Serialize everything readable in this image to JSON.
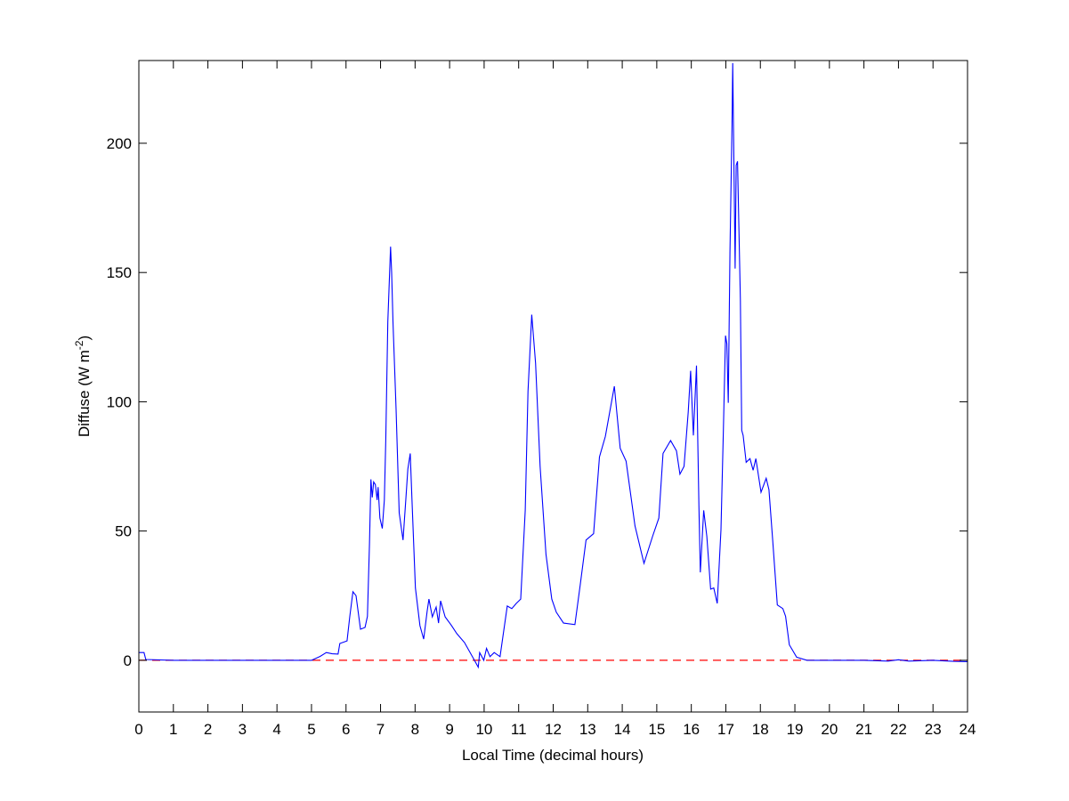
{
  "chart_data": {
    "type": "line",
    "title": "",
    "xlabel": "Local Time (decimal hours)",
    "ylabel_main": "Diffuse (W m",
    "ylabel_sup": "-2",
    "ylabel_end": ")",
    "xlim": [
      0,
      24
    ],
    "ylim": [
      -20,
      232
    ],
    "xticks": [
      0,
      1,
      2,
      3,
      4,
      5,
      6,
      7,
      8,
      9,
      10,
      11,
      12,
      13,
      14,
      15,
      16,
      17,
      18,
      19,
      20,
      21,
      22,
      23,
      24
    ],
    "yticks": [
      0,
      50,
      100,
      150,
      200
    ],
    "grid": false,
    "legend": null,
    "colors": {
      "series": "#0000ff",
      "reference": "#ff0000",
      "axes": "#000000"
    },
    "reference_line": {
      "y": 0,
      "style": "dashed"
    },
    "series": [
      {
        "points": [
          [
            0,
            3
          ],
          [
            0.15,
            3
          ],
          [
            0.2,
            0.3
          ],
          [
            1,
            0
          ],
          [
            2,
            0
          ],
          [
            3,
            0
          ],
          [
            4,
            0
          ],
          [
            5.0,
            0
          ],
          [
            5.08,
            0.5
          ],
          [
            5.25,
            1.5
          ],
          [
            5.43,
            3
          ],
          [
            5.6,
            2.5
          ],
          [
            5.77,
            2.4
          ],
          [
            5.82,
            6.5
          ],
          [
            6.03,
            7.5
          ],
          [
            6.11,
            17
          ],
          [
            6.2,
            26.5
          ],
          [
            6.29,
            25
          ],
          [
            6.42,
            12
          ],
          [
            6.55,
            12.7
          ],
          [
            6.62,
            17
          ],
          [
            6.68,
            45
          ],
          [
            6.72,
            70
          ],
          [
            6.76,
            63
          ],
          [
            6.8,
            69
          ],
          [
            6.85,
            68
          ],
          [
            6.9,
            62
          ],
          [
            6.93,
            67
          ],
          [
            6.98,
            55
          ],
          [
            7.05,
            51
          ],
          [
            7.11,
            62
          ],
          [
            7.15,
            85
          ],
          [
            7.21,
            131
          ],
          [
            7.29,
            160
          ],
          [
            7.32,
            150
          ],
          [
            7.36,
            131
          ],
          [
            7.45,
            97
          ],
          [
            7.54,
            57
          ],
          [
            7.65,
            46.5
          ],
          [
            7.73,
            62
          ],
          [
            7.79,
            74
          ],
          [
            7.86,
            80
          ],
          [
            7.91,
            62.5
          ],
          [
            8.01,
            28
          ],
          [
            8.14,
            13.4
          ],
          [
            8.25,
            8.2
          ],
          [
            8.35,
            19
          ],
          [
            8.4,
            23.7
          ],
          [
            8.5,
            16.8
          ],
          [
            8.61,
            20.6
          ],
          [
            8.68,
            14.4
          ],
          [
            8.74,
            23
          ],
          [
            8.87,
            16.8
          ],
          [
            9.04,
            13.7
          ],
          [
            9.21,
            10.3
          ],
          [
            9.43,
            6.9
          ],
          [
            9.69,
            0.7
          ],
          [
            9.83,
            -2.7
          ],
          [
            9.87,
            3
          ],
          [
            9.99,
            0
          ],
          [
            10.07,
            4.6
          ],
          [
            10.17,
            1.4
          ],
          [
            10.29,
            3
          ],
          [
            10.46,
            1.4
          ],
          [
            10.67,
            21
          ],
          [
            10.8,
            20
          ],
          [
            10.93,
            22
          ],
          [
            11.06,
            23.7
          ],
          [
            11.19,
            58
          ],
          [
            11.27,
            104
          ],
          [
            11.38,
            133.7
          ],
          [
            11.49,
            115
          ],
          [
            11.62,
            75
          ],
          [
            11.79,
            41
          ],
          [
            11.96,
            23.7
          ],
          [
            12.09,
            18.6
          ],
          [
            12.3,
            14.4
          ],
          [
            12.63,
            13.8
          ],
          [
            12.78,
            29
          ],
          [
            12.95,
            46.5
          ],
          [
            13.17,
            49
          ],
          [
            13.34,
            78.7
          ],
          [
            13.51,
            86.6
          ],
          [
            13.77,
            106
          ],
          [
            13.94,
            82
          ],
          [
            14.11,
            77
          ],
          [
            14.37,
            52
          ],
          [
            14.63,
            37.5
          ],
          [
            14.88,
            48
          ],
          [
            15.06,
            55
          ],
          [
            15.18,
            80
          ],
          [
            15.4,
            85
          ],
          [
            15.57,
            81
          ],
          [
            15.67,
            72
          ],
          [
            15.79,
            75
          ],
          [
            15.91,
            96
          ],
          [
            15.98,
            112
          ],
          [
            16.06,
            87
          ],
          [
            16.15,
            114
          ],
          [
            16.22,
            60
          ],
          [
            16.26,
            34
          ],
          [
            16.36,
            58
          ],
          [
            16.45,
            48
          ],
          [
            16.56,
            27.5
          ],
          [
            16.65,
            28
          ],
          [
            16.75,
            22
          ],
          [
            16.86,
            50.5
          ],
          [
            16.93,
            89
          ],
          [
            16.99,
            125.6
          ],
          [
            17.03,
            122.5
          ],
          [
            17.07,
            99.6
          ],
          [
            17.12,
            158
          ],
          [
            17.18,
            207
          ],
          [
            17.2,
            231
          ],
          [
            17.25,
            173
          ],
          [
            17.27,
            151.5
          ],
          [
            17.3,
            191.5
          ],
          [
            17.34,
            193
          ],
          [
            17.42,
            139.5
          ],
          [
            17.46,
            89
          ],
          [
            17.5,
            87
          ],
          [
            17.59,
            76.6
          ],
          [
            17.7,
            78
          ],
          [
            17.79,
            73.5
          ],
          [
            17.87,
            78
          ],
          [
            18.02,
            65
          ],
          [
            18.17,
            70.4
          ],
          [
            18.25,
            66
          ],
          [
            18.36,
            46
          ],
          [
            18.49,
            21.4
          ],
          [
            18.65,
            20
          ],
          [
            18.73,
            17
          ],
          [
            18.84,
            6
          ],
          [
            19.05,
            1.2
          ],
          [
            19.35,
            0
          ],
          [
            20,
            0
          ],
          [
            21,
            0
          ],
          [
            21.7,
            -0.3
          ],
          [
            22,
            0.2
          ],
          [
            22.3,
            -0.3
          ],
          [
            23,
            0
          ],
          [
            23.6,
            -0.4
          ],
          [
            24,
            -0.5
          ]
        ]
      }
    ]
  }
}
